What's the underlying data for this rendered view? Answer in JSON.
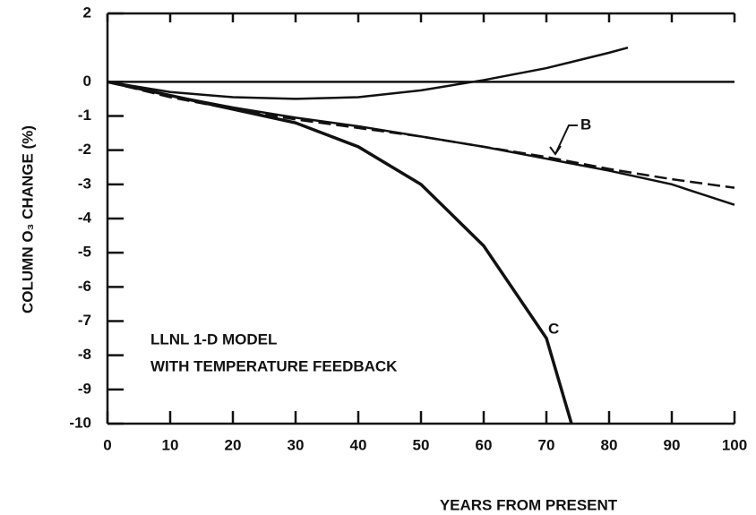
{
  "chart_data": {
    "type": "line",
    "xlabel": "YEARS FROM PRESENT",
    "ylabel": "COLUMN O₃ CHANGE (%)",
    "annotations": [
      "LLNL 1-D MODEL",
      "WITH TEMPERATURE FEEDBACK"
    ],
    "xlim": [
      0,
      100
    ],
    "xticks": [
      0,
      10,
      20,
      30,
      40,
      50,
      60,
      70,
      80,
      90,
      100
    ],
    "ylim": [
      -10,
      2
    ],
    "yticks": [
      2,
      0,
      -1,
      -2,
      -3,
      -4,
      -5,
      -6,
      -7,
      -8,
      -9,
      -10
    ],
    "series": [
      {
        "color": "#111111",
        "x": [
          0,
          10,
          20,
          30,
          40,
          50,
          60,
          70,
          80,
          83
        ],
        "values": [
          0,
          -0.3,
          -0.45,
          -0.5,
          -0.45,
          -0.25,
          0.05,
          0.4,
          0.85,
          1.0
        ]
      },
      {
        "color": "#111111",
        "x": [
          0,
          100
        ],
        "values": [
          0,
          0
        ]
      },
      {
        "name": "B",
        "color": "#111111",
        "x": [
          0,
          10,
          20,
          30,
          40,
          50,
          60,
          70,
          80,
          90,
          100
        ],
        "values": [
          0,
          -0.4,
          -0.75,
          -1.05,
          -1.3,
          -1.6,
          -1.9,
          -2.25,
          -2.6,
          -3.0,
          -3.6
        ]
      },
      {
        "color": "#111111",
        "dashed": true,
        "x": [
          0,
          10,
          20,
          30,
          40,
          50,
          60,
          70,
          80,
          90,
          100
        ],
        "values": [
          0,
          -0.45,
          -0.8,
          -1.1,
          -1.35,
          -1.6,
          -1.9,
          -2.2,
          -2.55,
          -2.85,
          -3.1
        ]
      },
      {
        "name": "C",
        "color": "#111111",
        "x": [
          0,
          10,
          20,
          30,
          40,
          50,
          60,
          70,
          74
        ],
        "values": [
          0,
          -0.4,
          -0.8,
          -1.2,
          -1.9,
          -3.0,
          -4.8,
          -7.5,
          -10
        ]
      }
    ]
  }
}
